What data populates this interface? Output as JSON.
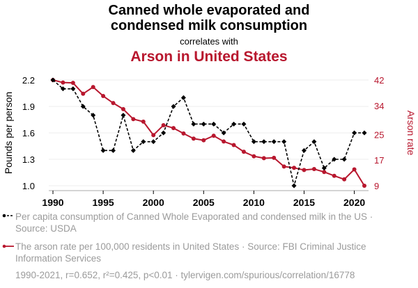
{
  "header": {
    "title_line1": "Canned whole evaporated and",
    "title_line2": "condensed milk consumption",
    "subtitle": "correlates with",
    "title2": "Arson in United States"
  },
  "legend": {
    "series1": "Per capita consumption of Canned Whole Evaporated and condensed milk in the US · Source: USDA",
    "series2": "The arson rate per 100,000 residents in United States · Source: FBI Criminal Justice Information Services"
  },
  "footer": "1990-2021, r=0.652, r²=0.425, p<0.01 · tylervigen.com/spurious/correlation/16778",
  "colors": {
    "series1": "#000000",
    "series2": "#b8172e",
    "grid": "#eeeeee",
    "axis_text_right": "#b8172e"
  },
  "chart_data": {
    "type": "line",
    "title": "Canned whole evaporated and condensed milk consumption correlates with Arson in United States",
    "x": [
      1990,
      1991,
      1992,
      1993,
      1994,
      1995,
      1996,
      1997,
      1998,
      1999,
      2000,
      2001,
      2002,
      2003,
      2004,
      2005,
      2006,
      2007,
      2008,
      2009,
      2010,
      2011,
      2012,
      2013,
      2014,
      2015,
      2016,
      2017,
      2018,
      2019,
      2020,
      2021
    ],
    "xticks": [
      1990,
      1995,
      2000,
      2005,
      2010,
      2015,
      2020
    ],
    "xlim": [
      1990,
      2021
    ],
    "series": [
      {
        "name": "Per capita consumption of Canned Whole Evaporated and condensed milk in the US",
        "axis": "left",
        "style": "dashed",
        "values": [
          2.2,
          2.1,
          2.1,
          1.9,
          1.8,
          1.4,
          1.4,
          1.8,
          1.4,
          1.5,
          1.5,
          1.6,
          1.9,
          2.0,
          1.7,
          1.7,
          1.7,
          1.6,
          1.7,
          1.7,
          1.5,
          1.5,
          1.5,
          1.5,
          1.0,
          1.4,
          1.5,
          1.2,
          1.3,
          1.3,
          1.6,
          1.6
        ]
      },
      {
        "name": "The arson rate per 100,000 residents in United States",
        "axis": "right",
        "style": "solid",
        "values": [
          42.0,
          41.2,
          41.1,
          37.7,
          39.8,
          37.0,
          34.8,
          32.9,
          29.8,
          29.0,
          24.8,
          27.9,
          27.0,
          25.3,
          23.7,
          23.2,
          24.6,
          22.8,
          21.7,
          19.6,
          18.2,
          17.6,
          17.7,
          15.0,
          14.6,
          13.9,
          14.2,
          13.3,
          12.1,
          11.0,
          14.1,
          9.0
        ]
      }
    ],
    "ylabel": "Pounds per person",
    "ylim": [
      1.0,
      2.2
    ],
    "yticks": [
      "2.2",
      "1.9",
      "1.6",
      "1.3",
      "1.0"
    ],
    "ylabel_right": "Arson rate",
    "ylim_right": [
      9,
      42
    ],
    "yticks_right": [
      "42",
      "34",
      "25",
      "17",
      "9"
    ],
    "grid": true,
    "legend_position": "bottom-left"
  }
}
